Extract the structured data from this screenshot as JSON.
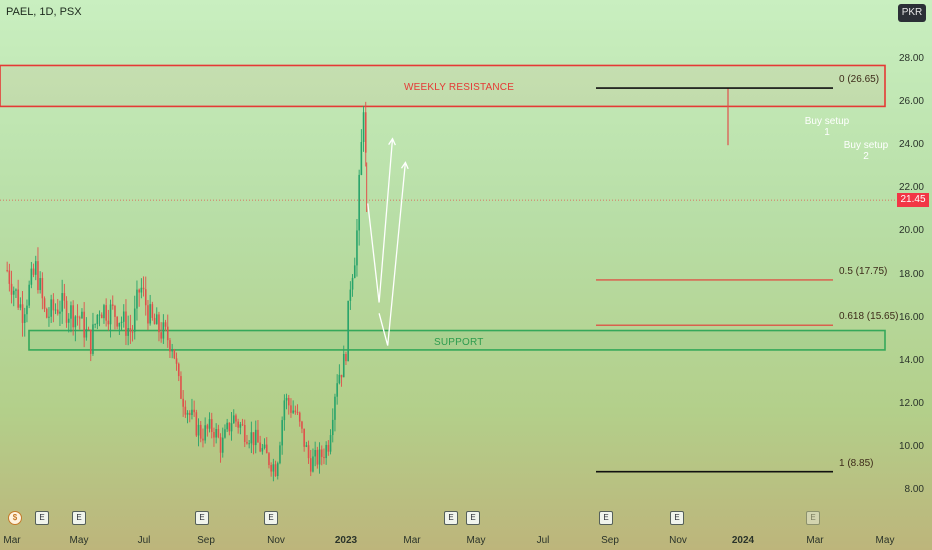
{
  "header": {
    "title": "PAEL, 1D, PSX",
    "currency": "PKR"
  },
  "last_price_tag": "21.45",
  "colors": {
    "up": "#27a36a",
    "down": "#e0504b",
    "resistance": "#e53935",
    "support": "#35a85a",
    "fib_ext": "#111111",
    "fib_mid": "#e53935",
    "arrow": "#ffffff"
  },
  "chart_data": {
    "type": "candlestick",
    "symbol": "PAEL",
    "interval": "1D",
    "exchange": "PSX",
    "ylim": [
      8,
      29
    ],
    "yticks": [
      "28.00",
      "26.00",
      "24.00",
      "22.00",
      "20.00",
      "18.00",
      "16.00",
      "14.00",
      "12.00",
      "10.00",
      "8.00"
    ],
    "xticks": [
      {
        "label": "Mar",
        "bold": false
      },
      {
        "label": "May",
        "bold": false
      },
      {
        "label": "Jul",
        "bold": false
      },
      {
        "label": "Sep",
        "bold": false
      },
      {
        "label": "Nov",
        "bold": false
      },
      {
        "label": "2023",
        "bold": true
      },
      {
        "label": "Mar",
        "bold": false
      },
      {
        "label": "May",
        "bold": false
      },
      {
        "label": "Jul",
        "bold": false
      },
      {
        "label": "Sep",
        "bold": false
      },
      {
        "label": "Nov",
        "bold": false
      },
      {
        "label": "2024",
        "bold": true
      },
      {
        "label": "Mar",
        "bold": false
      },
      {
        "label": "May",
        "bold": false
      }
    ],
    "last_price": 21.45,
    "price_path": [
      {
        "date": "2022-02-20",
        "close": 18.2
      },
      {
        "date": "2022-03-20",
        "close": 16.3
      },
      {
        "date": "2022-04-15",
        "close": 18.3
      },
      {
        "date": "2022-05-02",
        "close": 16.0
      },
      {
        "date": "2022-05-28",
        "close": 16.6
      },
      {
        "date": "2022-07-05",
        "close": 16.0
      },
      {
        "date": "2022-07-25",
        "close": 14.8
      },
      {
        "date": "2022-08-10",
        "close": 16.5
      },
      {
        "date": "2022-09-10",
        "close": 16.2
      },
      {
        "date": "2022-10-10",
        "close": 15.3
      },
      {
        "date": "2022-10-25",
        "close": 17.5
      },
      {
        "date": "2022-11-15",
        "close": 15.8
      },
      {
        "date": "2022-12-10",
        "close": 15.2
      },
      {
        "date": "2022-12-25",
        "close": 14.8
      },
      {
        "date": "2023-01-05",
        "close": 12.8
      },
      {
        "date": "2023-01-25",
        "close": 11.5
      },
      {
        "date": "2023-02-15",
        "close": 10.6
      },
      {
        "date": "2023-03-10",
        "close": 10.9
      },
      {
        "date": "2023-03-25",
        "close": 10.0
      },
      {
        "date": "2023-04-15",
        "close": 11.4
      },
      {
        "date": "2023-05-05",
        "close": 10.8
      },
      {
        "date": "2023-05-25",
        "close": 10.4
      },
      {
        "date": "2023-06-15",
        "close": 9.6
      },
      {
        "date": "2023-07-05",
        "close": 9.0
      },
      {
        "date": "2023-07-20",
        "close": 12.2
      },
      {
        "date": "2023-08-10",
        "close": 11.6
      },
      {
        "date": "2023-08-25",
        "close": 10.3
      },
      {
        "date": "2023-09-05",
        "close": 9.3
      },
      {
        "date": "2023-09-25",
        "close": 9.5
      },
      {
        "date": "2023-10-10",
        "close": 10.2
      },
      {
        "date": "2023-10-25",
        "close": 13.2
      },
      {
        "date": "2023-11-10",
        "close": 14.0
      },
      {
        "date": "2023-11-20",
        "close": 17.8
      },
      {
        "date": "2023-12-01",
        "close": 19.5
      },
      {
        "date": "2023-12-10",
        "close": 23.8
      },
      {
        "date": "2023-12-15",
        "close": 26.65
      },
      {
        "date": "2023-12-20",
        "close": 21.45
      }
    ],
    "annotations": {
      "resistance_zone": {
        "label": "WEEKLY RESISTANCE",
        "y_low": 25.8,
        "y_high": 27.7
      },
      "support_zone": {
        "label": "SUPPORT",
        "y_low": 14.5,
        "y_high": 15.4
      },
      "fib_levels": [
        {
          "label": "0 (26.65)",
          "value": 26.65
        },
        {
          "label": "0.5 (17.75)",
          "value": 17.75
        },
        {
          "label": "0.618 (15.65)",
          "value": 15.65
        },
        {
          "label": "1 (8.85)",
          "value": 8.85
        }
      ],
      "buy_setups": [
        {
          "title": "Buy setup",
          "number": "1",
          "path": [
            {
              "date": "2023-12-22",
              "price": 21.3
            },
            {
              "date": "2024-01-12",
              "price": 16.7
            },
            {
              "date": "2024-02-06",
              "price": 24.3
            }
          ]
        },
        {
          "title": "Buy setup",
          "number": "2",
          "path": [
            {
              "date": "2024-01-12",
              "price": 16.2
            },
            {
              "date": "2024-01-28",
              "price": 14.7
            },
            {
              "date": "2024-03-01",
              "price": 23.2
            }
          ]
        }
      ]
    },
    "events": [
      "$",
      "E",
      "E",
      "E",
      "E",
      "E",
      "E",
      "E",
      "E",
      "E"
    ]
  }
}
